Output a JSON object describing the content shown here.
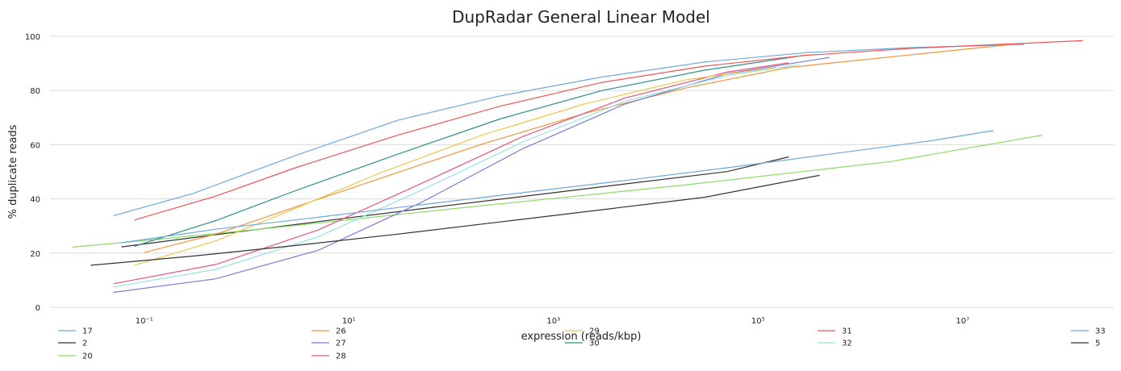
{
  "chart_data": {
    "type": "line",
    "title": "DupRadar General Linear Model",
    "xlabel": "expression (reads/kbp)",
    "ylabel": "% duplicate reads",
    "x_scale": "log",
    "xlim": [
      0.012,
      300000000
    ],
    "ylim": [
      0,
      100
    ],
    "x_ticks": [
      {
        "value": 0.1,
        "label": "10⁻¹"
      },
      {
        "value": 10,
        "label": "10¹"
      },
      {
        "value": 1000,
        "label": "10³"
      },
      {
        "value": 100000,
        "label": "10⁵"
      },
      {
        "value": 10000000,
        "label": "10⁷"
      }
    ],
    "y_ticks": [
      0,
      20,
      40,
      60,
      80,
      100
    ],
    "grid": "horizontal",
    "legend_placement": "bottom",
    "series": [
      {
        "name": "17",
        "color": "#6fa8dc",
        "x": [
          0.05,
          0.3,
          3,
          30,
          300,
          3000,
          30000,
          300000,
          3000000,
          40000000
        ],
        "y": [
          33.8,
          42,
          56,
          69,
          78,
          85,
          90.5,
          94,
          95.8,
          97
        ]
      },
      {
        "name": "2",
        "color": "#333333",
        "x": [
          0.06,
          0.5,
          5,
          50,
          500,
          5000,
          50000,
          200000
        ],
        "y": [
          22.3,
          26.8,
          31.6,
          36.3,
          40.9,
          45.5,
          50.1,
          55.5
        ]
      },
      {
        "name": "20",
        "color": "#88dd66",
        "x": [
          0.02,
          0.2,
          2,
          20,
          200,
          2000,
          20000,
          200000,
          2000000,
          60000000
        ],
        "y": [
          22.2,
          25.7,
          29.5,
          33.5,
          37.5,
          41.3,
          45.2,
          49.5,
          53.8,
          63.5
        ]
      },
      {
        "name": "26",
        "color": "#f0943c",
        "x": [
          0.1,
          0.5,
          3,
          20,
          200,
          2000,
          20000,
          200000,
          3000000,
          30000000
        ],
        "y": [
          20.2,
          27,
          37,
          47.5,
          60.2,
          71.5,
          81,
          88.5,
          93.1,
          97
        ]
      },
      {
        "name": "27",
        "color": "#7b7bd6",
        "x": [
          0.05,
          0.5,
          5,
          50,
          500,
          5000,
          50000,
          500000
        ],
        "y": [
          5.5,
          10.5,
          21,
          38.5,
          58.5,
          75,
          86.2,
          92.2
        ]
      },
      {
        "name": "28",
        "color": "#e4567a",
        "x": [
          0.05,
          0.5,
          5,
          50,
          500,
          5000,
          50000,
          200000
        ],
        "y": [
          8.7,
          15.8,
          28.5,
          45.5,
          63,
          77.2,
          86.8,
          90.2
        ]
      },
      {
        "name": "29",
        "color": "#e8c94a",
        "x": [
          0.08,
          0.5,
          3,
          20,
          200,
          2000,
          20000,
          150000
        ],
        "y": [
          15.5,
          24.5,
          36.5,
          49.5,
          63.5,
          75,
          84,
          88.5
        ]
      },
      {
        "name": "30",
        "color": "#2a8f8a",
        "x": [
          0.08,
          0.5,
          3,
          30,
          300,
          3000,
          30000,
          300000
        ],
        "y": [
          22.5,
          32,
          43,
          56.5,
          69.5,
          80,
          87.5,
          93.1
        ]
      },
      {
        "name": "31",
        "color": "#ee5555",
        "x": [
          0.08,
          0.5,
          3,
          30,
          300,
          3000,
          30000,
          300000,
          3000000,
          30000000,
          150000000
        ],
        "y": [
          32.2,
          41,
          51.5,
          63.5,
          74.2,
          83,
          89,
          93,
          95.5,
          97.2,
          98.4
        ]
      },
      {
        "name": "32",
        "color": "#99e0e6",
        "x": [
          0.05,
          0.5,
          5,
          50,
          500,
          5000,
          50000,
          250000
        ],
        "y": [
          7.5,
          14,
          26,
          43,
          61,
          76,
          85.5,
          89.5
        ]
      },
      {
        "name": "33",
        "color": "#6fa8dc",
        "x": [
          0.06,
          0.5,
          5,
          50,
          500,
          5000,
          50000,
          500000,
          5000000,
          20000000
        ],
        "y": [
          23.8,
          28.8,
          33.2,
          37.8,
          42.3,
          46.8,
          51.5,
          56.5,
          61.5,
          65.2
        ]
      },
      {
        "name": "5",
        "color": "#333333",
        "x": [
          0.03,
          0.3,
          3,
          30,
          300,
          3000,
          30000,
          400000
        ],
        "y": [
          15.5,
          18.9,
          22.8,
          27,
          31.5,
          36,
          40.6,
          48.7
        ]
      }
    ]
  }
}
